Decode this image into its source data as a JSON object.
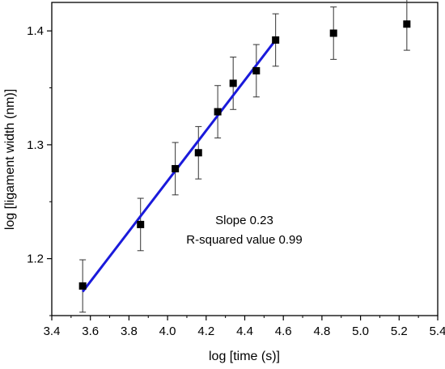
{
  "chart_data": {
    "type": "scatter",
    "xlabel": "log [time (s)]",
    "ylabel": "log [ligament width (nm)]",
    "xlim": [
      3.4,
      5.4
    ],
    "ylim": [
      1.15,
      1.425
    ],
    "x_ticks": [
      3.4,
      3.6,
      3.8,
      4.0,
      4.2,
      4.4,
      4.6,
      4.8,
      5.0,
      5.2,
      5.4
    ],
    "y_ticks": [
      1.2,
      1.3,
      1.4
    ],
    "x_tick_labels": [
      "3.4",
      "3.6",
      "3.8",
      "4.0",
      "4.2",
      "4.4",
      "4.6",
      "4.8",
      "5.0",
      "5.2",
      "5.4"
    ],
    "y_tick_labels": [
      "1.2",
      "1.3",
      "1.4"
    ],
    "grid": false,
    "series": [
      {
        "marker": "square",
        "color": "#000000",
        "points": [
          {
            "x": 3.56,
            "y": 1.176,
            "err": 0.023
          },
          {
            "x": 3.86,
            "y": 1.23,
            "err": 0.023
          },
          {
            "x": 4.04,
            "y": 1.279,
            "err": 0.023
          },
          {
            "x": 4.16,
            "y": 1.293,
            "err": 0.023
          },
          {
            "x": 4.26,
            "y": 1.329,
            "err": 0.023
          },
          {
            "x": 4.34,
            "y": 1.354,
            "err": 0.023
          },
          {
            "x": 4.46,
            "y": 1.365,
            "err": 0.023
          },
          {
            "x": 4.56,
            "y": 1.392,
            "err": 0.023
          },
          {
            "x": 4.86,
            "y": 1.398,
            "err": 0.023
          },
          {
            "x": 5.24,
            "y": 1.406,
            "err": 0.023
          }
        ]
      }
    ],
    "fit_line": {
      "color": "#1a1adb",
      "x": [
        3.56,
        4.56
      ],
      "y": [
        1.171,
        1.392
      ]
    },
    "annotations": [
      "Slope 0.23",
      "R-squared value 0.99"
    ]
  }
}
